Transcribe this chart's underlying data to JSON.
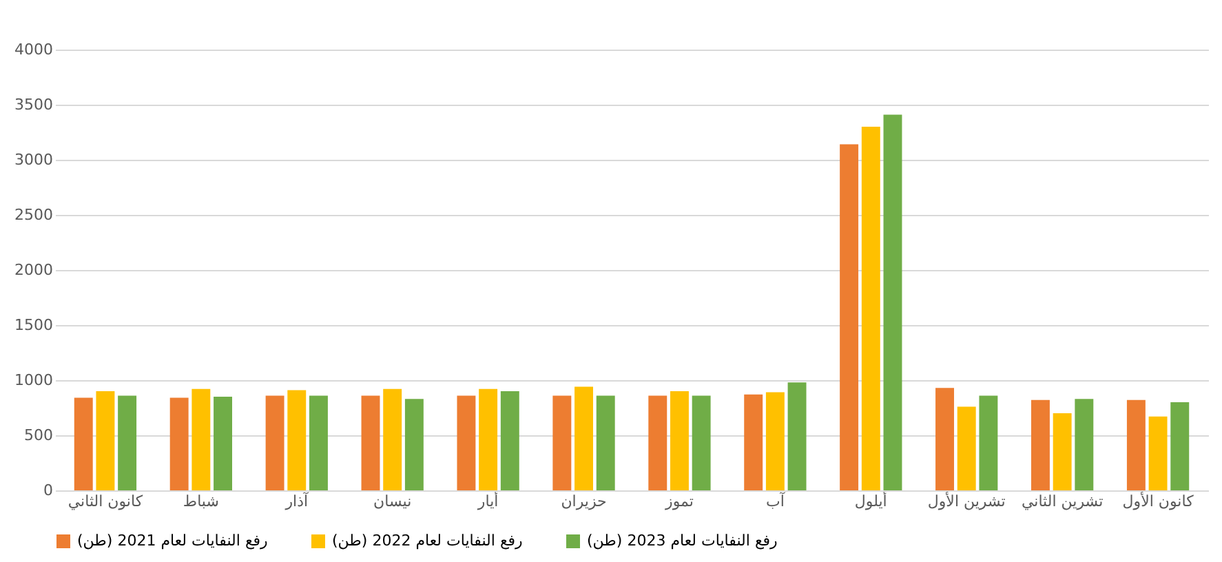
{
  "chart_data": {
    "type": "bar",
    "categories": [
      "كانون الثاني",
      "شباط",
      "آذار",
      "نيسان",
      "أيار",
      "حزيران",
      "تموز",
      "آب",
      "أيلول",
      "تشرين الأول",
      "تشرين الثاني",
      "كانون الأول"
    ],
    "series": [
      {
        "name": "رفع النفايات لعام 2021 (طن)",
        "color": "#ed7d31",
        "values": [
          840,
          840,
          860,
          860,
          860,
          860,
          860,
          870,
          3140,
          930,
          820,
          820
        ]
      },
      {
        "name": "رفع النفايات لعام 2022 (طن)",
        "color": "#ffc000",
        "values": [
          900,
          920,
          910,
          920,
          920,
          940,
          900,
          890,
          3300,
          760,
          700,
          670
        ]
      },
      {
        "name": "رفع النفايات لعام 2023 (طن)",
        "color": "#70ad47",
        "values": [
          860,
          850,
          860,
          830,
          900,
          860,
          860,
          980,
          3410,
          860,
          830,
          800
        ]
      }
    ],
    "ylim": [
      0,
      4000
    ],
    "yticks": [
      0,
      500,
      1000,
      1500,
      2000,
      2500,
      3000,
      3500,
      4000
    ],
    "grid": "y",
    "legend": "bottom"
  }
}
